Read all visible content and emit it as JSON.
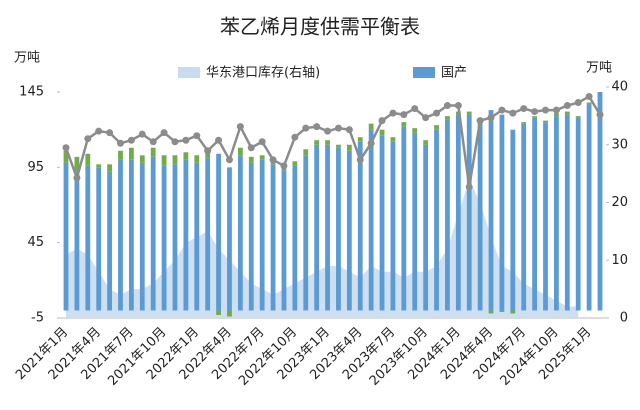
{
  "chart_data": {
    "type": "bar",
    "title": "苯乙烯月度供需平衡表",
    "y_unit": "万吨",
    "y2_unit": "万吨",
    "categories": [
      "2021年1月",
      null,
      null,
      "2021年4月",
      null,
      null,
      "2021年7月",
      null,
      null,
      "2021年10月",
      null,
      null,
      "2022年1月",
      null,
      null,
      "2022年4月",
      null,
      null,
      "2022年7月",
      null,
      null,
      "2022年10月",
      null,
      null,
      "2023年1月",
      null,
      null,
      "2023年4月",
      null,
      null,
      "2023年7月",
      null,
      null,
      "2023年10月",
      null,
      null,
      "2024年1月",
      null,
      null,
      "2024年4月",
      null,
      null,
      "2024年7月",
      null,
      null,
      "2024年10月",
      null,
      null,
      "2025年1月",
      null
    ],
    "series": [
      {
        "name": "华东港口库存(右轴)",
        "type": "area",
        "axis": "y2",
        "color": "#c9dbef",
        "values": [
          11,
          12,
          11,
          8,
          5,
          4,
          5,
          5,
          6,
          8,
          10,
          13,
          14,
          15,
          12,
          10,
          8,
          6,
          5,
          4,
          5,
          6,
          7,
          8,
          9,
          9,
          8,
          7,
          9,
          8,
          8,
          7,
          8,
          8,
          9,
          12,
          18,
          24,
          20,
          14,
          9,
          8,
          6,
          5,
          4,
          3,
          2,
          2,
          null,
          null
        ]
      },
      {
        "name": "国产",
        "type": "bar",
        "color": "#5b9bd5",
        "values": [
          98,
          92,
          96,
          95,
          92,
          100,
          100,
          98,
          102,
          96,
          97,
          100,
          98,
          101,
          104,
          95,
          103,
          98,
          100,
          97,
          93,
          96,
          103,
          110,
          110,
          108,
          106,
          112,
          120,
          116,
          112,
          122,
          118,
          110,
          120,
          127,
          130,
          130,
          126,
          133,
          130,
          120,
          124,
          128,
          125,
          129,
          130,
          128,
          137,
          145
        ]
      },
      {
        "type": "stack",
        "color": "#70ad47",
        "values": [
          8,
          10,
          8,
          2,
          5,
          6,
          8,
          5,
          6,
          7,
          6,
          5,
          5,
          4,
          -3,
          -4,
          5,
          4,
          3,
          2,
          2,
          3,
          4,
          3,
          3,
          2,
          4,
          3,
          4,
          4,
          3,
          3,
          3,
          3,
          3,
          2,
          2,
          2,
          1,
          -2,
          -1,
          -2,
          1,
          1,
          1,
          2,
          2,
          1,
          1,
          0
        ]
      },
      {
        "type": "line",
        "color": "#8c8c8c",
        "values": [
          108,
          88,
          114,
          119,
          118,
          111,
          113,
          117,
          112,
          118,
          112,
          113,
          116,
          106,
          113,
          100,
          122,
          108,
          112,
          100,
          96,
          115,
          121,
          122,
          119,
          121,
          120,
          100,
          111,
          126,
          131,
          130,
          134,
          128,
          131,
          136,
          136,
          82,
          126,
          128,
          133,
          131,
          134,
          132,
          133,
          133,
          136,
          138,
          142,
          130
        ]
      }
    ],
    "ylim": [
      -5,
      145
    ],
    "yticks": [
      -5,
      45,
      95,
      145
    ],
    "y2lim": [
      0,
      40
    ],
    "y2ticks": [
      0,
      10,
      20,
      30,
      40
    ]
  }
}
